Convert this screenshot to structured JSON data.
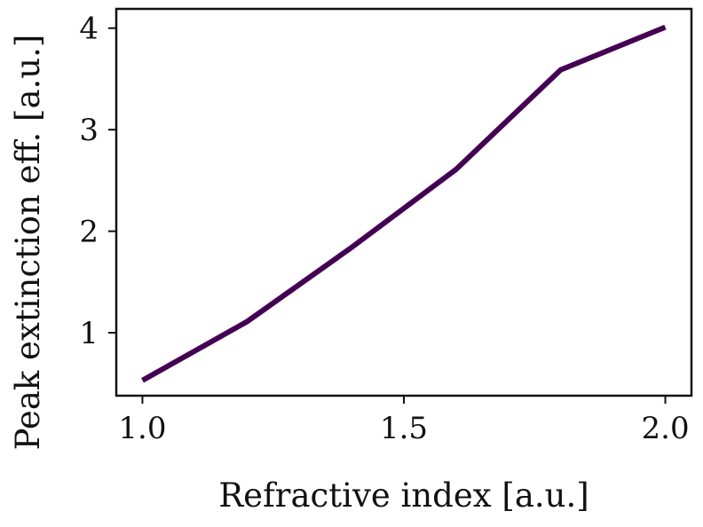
{
  "chart_data": {
    "type": "line",
    "title": "",
    "xlabel": "Refractive index [a.u.]",
    "ylabel": "Peak extinction eff. [a.u.]",
    "xlim": [
      0.95,
      2.05
    ],
    "ylim": [
      0.38,
      4.19
    ],
    "xticks": [
      1.0,
      1.5,
      2.0
    ],
    "xtick_labels": [
      "1.0",
      "1.5",
      "2.0"
    ],
    "yticks": [
      1,
      2,
      3,
      4
    ],
    "ytick_labels": [
      "1",
      "2",
      "3",
      "4"
    ],
    "grid": false,
    "legend": "none",
    "series": [
      {
        "color": "#440154",
        "x": [
          1.0,
          1.2,
          1.4,
          1.6,
          1.8,
          2.0
        ],
        "y": [
          0.53,
          1.11,
          1.84,
          2.61,
          3.59,
          4.01
        ]
      }
    ]
  }
}
